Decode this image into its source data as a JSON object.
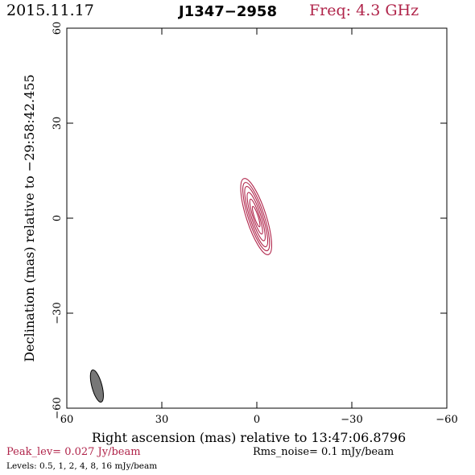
{
  "header": {
    "date": "2015.11.17",
    "source": "J1347−2958",
    "freq": "Freq: 4.3 GHz"
  },
  "axes": {
    "xlabel": "Right ascension (mas) relative to 13:47:06.8796",
    "ylabel": "Declination (mas) relative to −29:58:42.455",
    "x_range": [
      60,
      -60
    ],
    "y_range": [
      -60,
      60
    ],
    "x_ticks": [
      60,
      30,
      0,
      -30,
      -60
    ],
    "y_ticks": [
      60,
      30,
      0,
      -30,
      -60
    ],
    "x_tick_labels": [
      "60",
      "30",
      "0",
      "−30",
      "−60"
    ],
    "y_tick_labels": [
      "60",
      "30",
      "0",
      "−30",
      "−60"
    ]
  },
  "footer": {
    "peak": "Peak_lev=  0.027 Jy/beam",
    "rms": "Rms_noise=  0.1 mJy/beam",
    "levels": "Levels: 0.5,    1,    2,    4,    8,   16 mJy/beam"
  },
  "colors": {
    "contour": "#b0244a",
    "beam": "#777777",
    "frame": "#000000"
  },
  "contours": {
    "levels_mjy": [
      0.5,
      1,
      2,
      4,
      8,
      16
    ],
    "center_mas": [
      0.2,
      0.5
    ],
    "position_angle_deg": 18,
    "half_axes_mas": [
      [
        3.1,
        12.6
      ],
      [
        2.5,
        11.3
      ],
      [
        2.0,
        10.0
      ],
      [
        1.5,
        8.0
      ],
      [
        1.0,
        5.8
      ],
      [
        0.6,
        3.4
      ]
    ]
  },
  "beam": {
    "center_mas": [
      50.5,
      -53.0
    ],
    "major_mas": 10.5,
    "minor_mas": 3.2,
    "position_angle_deg": 15
  }
}
